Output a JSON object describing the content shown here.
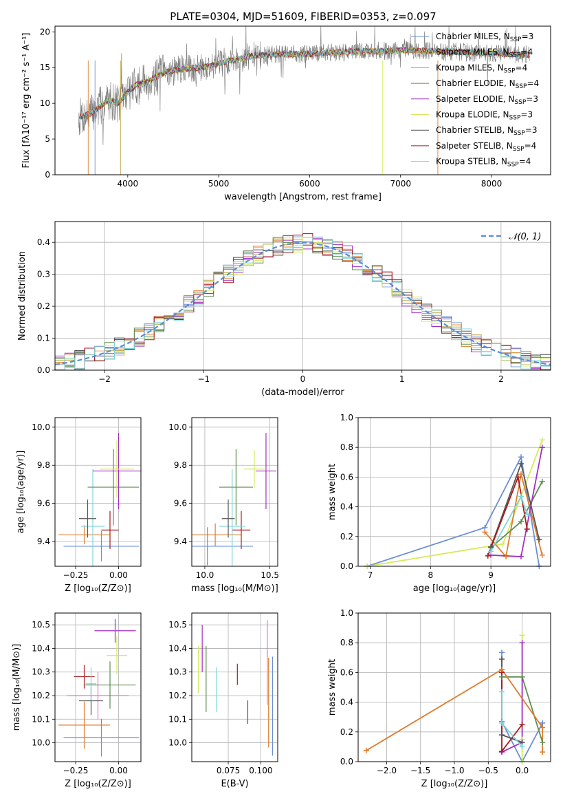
{
  "figure": {
    "title": "PLATE=0304, MJD=51609, FIBERID=0353, z=0.097"
  },
  "colors": {
    "chabrier_miles": "#6a8fd6",
    "salpeter_miles": "#e07b2a",
    "kroupa_miles": "#b8a23b",
    "chabrier_elodie": "#5b8f4f",
    "salpeter_elodie": "#a02fc4",
    "kroupa_elodie": "#d6ea5a",
    "chabrier_stelib": "#555555",
    "salpeter_stelib": "#a61c1c",
    "kroupa_stelib": "#7fd6d9",
    "normal": "#5b8bd9"
  },
  "chart_data": [
    {
      "id": "spectrum",
      "type": "line",
      "title": "PLATE=0304, MJD=51609, FIBERID=0353, z=0.097",
      "xlabel": "wavelength [Angstrom, rest frame]",
      "ylabel": "Flux [fλ10⁻¹⁷ erg cm⁻² s⁻¹ A⁻¹]",
      "xlim": [
        3200,
        8650
      ],
      "ylim": [
        0,
        20.8
      ],
      "xticks": [
        4000,
        5000,
        6000,
        7000,
        8000
      ],
      "yticks": [
        0,
        5,
        10,
        15,
        20
      ],
      "grid": false,
      "legend_position": "top-right",
      "continuum": {
        "x": [
          3450,
          3600,
          3700,
          3800,
          3900,
          4000,
          4100,
          4200,
          4300,
          4400,
          4500,
          4600,
          4700,
          4800,
          4900,
          5000,
          5200,
          5400,
          5600,
          5800,
          6000,
          6200,
          6400,
          6600,
          6800,
          7000,
          7200,
          7400,
          7600,
          7800,
          8000,
          8200,
          8400
        ],
        "y": [
          8.0,
          8.6,
          9.6,
          10.5,
          10.0,
          11.6,
          12.6,
          12.9,
          13.6,
          14.3,
          14.6,
          14.8,
          14.9,
          15.0,
          15.2,
          15.6,
          16.2,
          16.7,
          16.8,
          16.9,
          16.9,
          17.1,
          17.2,
          17.3,
          17.3,
          17.4,
          17.4,
          17.3,
          17.2,
          17.1,
          17.0,
          16.9,
          16.8
        ]
      },
      "series": [
        {
          "name": "Chabrier MILES, N",
          "nssp": "=3",
          "color": "#6a8fd6"
        },
        {
          "name": "Salpeter MILES, N",
          "nssp": "=4",
          "color": "#e07b2a"
        },
        {
          "name": "Kroupa MILES, N",
          "nssp": "=4",
          "color": "#b8a23b"
        },
        {
          "name": "Chabrier ELODIE, N",
          "nssp": "=4",
          "color": "#5b8f4f"
        },
        {
          "name": "Salpeter ELODIE, N",
          "nssp": "=3",
          "color": "#a02fc4"
        },
        {
          "name": "Kroupa ELODIE, N",
          "nssp": "=3",
          "color": "#d6ea5a"
        },
        {
          "name": "Chabrier STELIB, N",
          "nssp": "=3",
          "color": "#555555"
        },
        {
          "name": "Salpeter STELIB, N",
          "nssp": "=4",
          "color": "#a61c1c"
        },
        {
          "name": "Kroupa STELIB, N",
          "nssp": "=4",
          "color": "#7fd6d9"
        }
      ],
      "legend_subscript": "SSP"
    },
    {
      "id": "residuals",
      "type": "line",
      "xlabel": "(data-model)/error",
      "ylabel": "Normed distribution",
      "xlim": [
        -2.5,
        2.5
      ],
      "ylim": [
        0,
        0.465
      ],
      "xticks": [
        -2,
        -1,
        0,
        1,
        2
      ],
      "yticks": [
        0.0,
        0.1,
        0.2,
        0.3,
        0.4
      ],
      "grid": true,
      "legend_position": "top-right",
      "legend": "𝒩(0, 1)",
      "bin_width": 0.1
    },
    {
      "id": "age_vs_Z",
      "type": "scatter",
      "xlabel": "Z [log₁₀(Z/Z⊙)]",
      "ylabel": "age  [log₁₀(age/yr)]",
      "xlim": [
        -0.37,
        0.13
      ],
      "ylim": [
        9.27,
        10.05
      ],
      "xticks": [
        -0.25,
        0.0
      ],
      "xtick_labels": [
        "−0.25",
        "0.00"
      ],
      "yticks": [
        9.4,
        9.6,
        9.8,
        10.0
      ],
      "grid": true,
      "points": [
        {
          "x": -0.1,
          "y": 9.375,
          "xerr": 0.22,
          "yerr": 0.08,
          "color": "#6a8fd6"
        },
        {
          "x": -0.2,
          "y": 9.435,
          "xerr": 0.15,
          "yerr": 0.05,
          "color": "#e07b2a"
        },
        {
          "x": -0.05,
          "y": 9.46,
          "xerr": 0.05,
          "yerr": 0.1,
          "color": "#a61c1c"
        },
        {
          "x": -0.15,
          "y": 9.48,
          "xerr": 0.07,
          "yerr": 0.3,
          "color": "#7fd6d9"
        },
        {
          "x": -0.18,
          "y": 9.52,
          "xerr": 0.05,
          "yerr": 0.1,
          "color": "#555555"
        },
        {
          "x": -0.03,
          "y": 9.685,
          "xerr": 0.15,
          "yerr": 0.2,
          "color": "#5b8f4f"
        },
        {
          "x": 0.0,
          "y": 9.77,
          "xerr": 0.15,
          "yerr": 0.2,
          "color": "#a02fc4"
        },
        {
          "x": -0.01,
          "y": 9.78,
          "xerr": 0.1,
          "yerr": 0.15,
          "color": "#d6ea5a"
        }
      ]
    },
    {
      "id": "age_vs_mass",
      "type": "scatter",
      "xlabel": "mass [log₁₀(M/M⊙)]",
      "xlim": [
        9.9,
        10.56
      ],
      "ylim": [
        9.27,
        10.05
      ],
      "xticks": [
        10.0,
        10.5
      ],
      "yticks": [
        9.4,
        9.6,
        9.8,
        10.0
      ],
      "grid": true,
      "points": [
        {
          "x": 10.02,
          "y": 9.375,
          "xerr": 0.35,
          "yerr": 0.1,
          "color": "#6a8fd6"
        },
        {
          "x": 10.08,
          "y": 9.435,
          "xerr": 0.2,
          "yerr": 0.06,
          "color": "#e07b2a"
        },
        {
          "x": 10.28,
          "y": 9.46,
          "xerr": 0.07,
          "yerr": 0.1,
          "color": "#a61c1c"
        },
        {
          "x": 10.21,
          "y": 9.48,
          "xerr": 0.1,
          "yerr": 0.3,
          "color": "#7fd6d9"
        },
        {
          "x": 10.18,
          "y": 9.52,
          "xerr": 0.05,
          "yerr": 0.1,
          "color": "#555555"
        },
        {
          "x": 10.24,
          "y": 9.685,
          "xerr": 0.13,
          "yerr": 0.2,
          "color": "#5b8f4f"
        },
        {
          "x": 10.47,
          "y": 9.77,
          "xerr": 0.08,
          "yerr": 0.2,
          "color": "#a02fc4"
        },
        {
          "x": 10.38,
          "y": 9.78,
          "xerr": 0.08,
          "yerr": 0.1,
          "color": "#d6ea5a"
        }
      ]
    },
    {
      "id": "mass_weight_vs_age",
      "type": "line",
      "xlabel": "age  [log₁₀(age/yr)]",
      "ylabel": "mass weight",
      "xlim": [
        6.8,
        9.99
      ],
      "ylim": [
        0,
        1.0
      ],
      "xticks": [
        7,
        8,
        9
      ],
      "yticks": [
        0.0,
        0.2,
        0.4,
        0.6,
        0.8,
        1.0
      ],
      "grid": true,
      "series": [
        {
          "color": "#6a8fd6",
          "x": [
            6.95,
            8.9,
            9.5,
            9.8
          ],
          "y": [
            0.0,
            0.26,
            0.735,
            0.0
          ]
        },
        {
          "color": "#d6ea5a",
          "x": [
            6.95,
            9.2,
            9.85
          ],
          "y": [
            0.0,
            0.15,
            0.85
          ]
        },
        {
          "color": "#e07b2a",
          "x": [
            8.9,
            9.25,
            9.5,
            9.85
          ],
          "y": [
            0.23,
            0.065,
            0.62,
            0.075
          ]
        },
        {
          "color": "#5b8f4f",
          "x": [
            9.0,
            9.5,
            9.85
          ],
          "y": [
            0.125,
            0.3,
            0.57
          ]
        },
        {
          "color": "#a02fc4",
          "x": [
            9.0,
            9.5,
            9.85
          ],
          "y": [
            0.075,
            0.065,
            0.8
          ]
        },
        {
          "color": "#555555",
          "x": [
            9.0,
            9.5,
            9.8
          ],
          "y": [
            0.13,
            0.69,
            0.18
          ]
        },
        {
          "color": "#a61c1c",
          "x": [
            8.95,
            9.45,
            9.6
          ],
          "y": [
            0.07,
            0.6,
            0.25
          ]
        },
        {
          "color": "#7fd6d9",
          "x": [
            9.0,
            9.5,
            9.6
          ],
          "y": [
            0.1,
            0.47,
            0.35
          ]
        }
      ]
    },
    {
      "id": "mass_vs_Z",
      "type": "scatter",
      "xlabel": "Z [log₁₀(Z/Z⊙)]",
      "ylabel": "mass [log₁₀(M/M⊙)]",
      "xlim": [
        -0.37,
        0.13
      ],
      "ylim": [
        9.92,
        10.55
      ],
      "xticks": [
        -0.25,
        0.0
      ],
      "xtick_labels": [
        "−0.25",
        "0.00"
      ],
      "yticks": [
        10.0,
        10.1,
        10.2,
        10.3,
        10.4,
        10.5
      ],
      "grid": true,
      "points": [
        {
          "x": -0.1,
          "y": 10.022,
          "xerr": 0.22,
          "yerr": 0.08,
          "color": "#6a8fd6"
        },
        {
          "x": -0.2,
          "y": 10.075,
          "xerr": 0.15,
          "yerr": 0.1,
          "color": "#e07b2a"
        },
        {
          "x": -0.12,
          "y": 10.2,
          "xerr": 0.18,
          "yerr": 0.1,
          "color": "#e377c2"
        },
        {
          "x": -0.16,
          "y": 10.178,
          "xerr": 0.07,
          "yerr": 0.06,
          "color": "#555555"
        },
        {
          "x": -0.2,
          "y": 10.28,
          "xerr": 0.06,
          "yerr": 0.05,
          "color": "#a61c1c"
        },
        {
          "x": -0.16,
          "y": 10.25,
          "xerr": 0.03,
          "yerr": 0.07,
          "color": "#7fd6d9"
        },
        {
          "x": -0.05,
          "y": 10.245,
          "xerr": 0.15,
          "yerr": 0.1,
          "color": "#5b8f4f"
        },
        {
          "x": -0.01,
          "y": 10.37,
          "xerr": 0.06,
          "yerr": 0.08,
          "color": "#d6ea5a"
        },
        {
          "x": -0.02,
          "y": 10.475,
          "xerr": 0.12,
          "yerr": 0.05,
          "color": "#a02fc4"
        }
      ]
    },
    {
      "id": "mass_vs_ebv",
      "type": "scatter",
      "xlabel": "E(B-V)",
      "xlim": [
        0.047,
        0.113
      ],
      "ylim": [
        9.92,
        10.55
      ],
      "xticks": [
        0.075,
        0.1
      ],
      "xtick_labels": [
        "0.075",
        "0.100"
      ],
      "yticks": [
        10.0,
        10.1,
        10.2,
        10.3,
        10.4,
        10.5
      ],
      "grid": true,
      "points": [
        {
          "x": 0.052,
          "y": 10.31,
          "yerr": 0.1,
          "color": "#d6ea5a"
        },
        {
          "x": 0.055,
          "y": 10.4,
          "yerr": 0.1,
          "color": "#a02fc4"
        },
        {
          "x": 0.058,
          "y": 10.27,
          "yerr": 0.14,
          "color": "#5b8f4f"
        },
        {
          "x": 0.066,
          "y": 10.225,
          "yerr": 0.095,
          "color": "#7fd6d9"
        },
        {
          "x": 0.082,
          "y": 10.29,
          "yerr": 0.045,
          "color": "#a61c1c"
        },
        {
          "x": 0.09,
          "y": 10.13,
          "yerr": 0.05,
          "color": "#555555"
        },
        {
          "x": 0.105,
          "y": 10.34,
          "yerr": 0.18,
          "color": "#e377c2"
        },
        {
          "x": 0.106,
          "y": 10.17,
          "yerr": 0.19,
          "color": "#e07b2a"
        },
        {
          "x": 0.109,
          "y": 10.155,
          "yerr": 0.21,
          "color": "#6a8fd6"
        }
      ]
    },
    {
      "id": "mass_weight_vs_Z",
      "type": "line",
      "xlabel": "Z [log₁₀(Z/Z⊙)]",
      "ylabel": "mass weight",
      "xlim": [
        -2.42,
        0.42
      ],
      "ylim": [
        0,
        1.0
      ],
      "xticks": [
        -2.0,
        -1.5,
        -1.0,
        -0.5,
        0.0
      ],
      "xtick_labels": [
        "−2.0",
        "−1.5",
        "−1.0",
        "−0.5",
        "0.0"
      ],
      "yticks": [
        0.0,
        0.2,
        0.4,
        0.6,
        0.8,
        1.0
      ],
      "grid": true,
      "series": [
        {
          "color": "#6a8fd6",
          "x": [
            -0.3,
            -0.3,
            0.0,
            0.3,
            0.3
          ],
          "y": [
            0.735,
            0.27,
            0.0,
            0.26,
            0.26
          ]
        },
        {
          "color": "#d6ea5a",
          "x": [
            0.0,
            0.0,
            0.0
          ],
          "y": [
            0.85,
            0.15,
            0.0
          ]
        },
        {
          "color": "#5b8f4f",
          "x": [
            -0.3,
            0.0,
            0.3
          ],
          "y": [
            0.57,
            0.57,
            0.13
          ]
        },
        {
          "color": "#a02fc4",
          "x": [
            -0.3,
            0.0,
            0.0
          ],
          "y": [
            0.065,
            0.13,
            0.8
          ]
        },
        {
          "color": "#555555",
          "x": [
            -0.3,
            -0.3,
            0.0
          ],
          "y": [
            0.69,
            0.18,
            0.13
          ]
        },
        {
          "color": "#a61c1c",
          "x": [
            -0.3,
            -0.3,
            0.0
          ],
          "y": [
            0.6,
            0.07,
            0.25
          ]
        },
        {
          "color": "#7fd6d9",
          "x": [
            -0.3,
            -0.3,
            0.0
          ],
          "y": [
            0.47,
            0.26,
            0.1
          ]
        },
        {
          "color": "#e07b2a",
          "x": [
            -2.3,
            -0.3,
            0.3,
            0.3
          ],
          "y": [
            0.075,
            0.62,
            0.23,
            0.065
          ]
        }
      ]
    }
  ]
}
